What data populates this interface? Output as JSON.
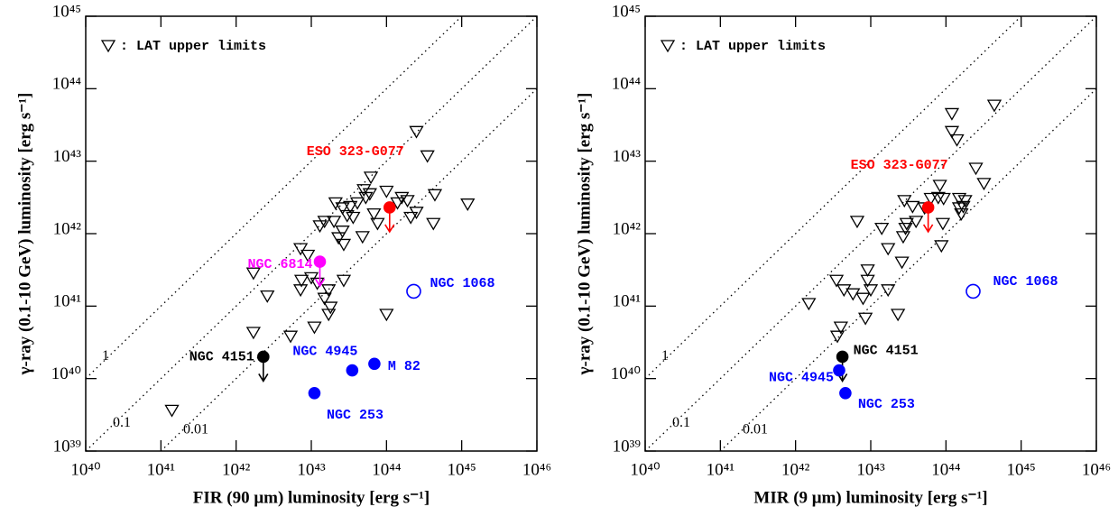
{
  "chart_data": [
    {
      "type": "scatter",
      "x_label": "FIR (90 μm) luminosity [erg s⁻¹]",
      "y_label": "γ-ray (0.1-10 GeV) luminosity [erg s⁻¹]",
      "xscale": "log",
      "yscale": "log",
      "xlim": [
        1e+40,
        1e+46
      ],
      "ylim": [
        1e+39,
        1e+45
      ],
      "xticks": [
        {
          "value": 1e+40,
          "label": "10⁴⁰"
        },
        {
          "value": 1e+41,
          "label": "10⁴¹"
        },
        {
          "value": 1e+42,
          "label": "10⁴²"
        },
        {
          "value": 1e+43,
          "label": "10⁴³"
        },
        {
          "value": 1e+44,
          "label": "10⁴⁴"
        },
        {
          "value": 1e+45,
          "label": "10⁴⁵"
        },
        {
          "value": 1e+46,
          "label": "10⁴⁶"
        }
      ],
      "yticks": [
        {
          "value": 1e+39,
          "label": "10³⁹"
        },
        {
          "value": 1e+40,
          "label": "10⁴⁰"
        },
        {
          "value": 1e+41,
          "label": "10⁴¹"
        },
        {
          "value": 1e+42,
          "label": "10⁴²"
        },
        {
          "value": 1e+43,
          "label": "10⁴³"
        },
        {
          "value": 1e+44,
          "label": "10⁴⁴"
        },
        {
          "value": 1e+45,
          "label": "10⁴⁵"
        }
      ],
      "ratio_lines": [
        1,
        0.1,
        0.01
      ],
      "legend": "upper left",
      "series": [
        {
          "name": ": LAT upper limits",
          "marker": "triangle-down",
          "color": "#000000",
          "x": [
            2.5e+44,
            3.5e+44,
            6.2e+43,
            5e+43,
            5.3e+43,
            3.3e+43,
            2.1e+43,
            4.1e+43,
            3.6e+43,
            6e+43,
            1e+44,
            1.6e+44,
            1.9e+44,
            1.4e+44,
            2.5e+44,
            2.1e+44,
            4.4e+44,
            1.2e+45,
            4.2e+44,
            6.8e+43,
            7.6e+43,
            2.6e+43,
            3e+43,
            2e+43,
            1.5e+43,
            1.3e+43,
            2.6e+43,
            2.3e+43,
            2.7e+43,
            4.8e+43,
            7.2e+42,
            9e+42,
            1.7e+42,
            2.6e+42,
            7.4e+42,
            7.2e+42,
            1e+43,
            1.2e+43,
            2.7e+43,
            1.7e+43,
            1.5e+43,
            1.8e+43,
            1.7e+43,
            1.1e+43,
            5.3e+42,
            1.7e+42,
            1e+44,
            1.4e+41
          ],
          "values": [
            2.6e+43,
            1.2e+43,
            6.1e+42,
            4.1e+42,
            3.2e+42,
            2.4e+42,
            2.7e+42,
            2.7e+42,
            1.7e+42,
            3.6e+42,
            3.9e+42,
            3.2e+42,
            2.9e+42,
            2.7e+42,
            2e+42,
            1.7e+42,
            3.5e+42,
            2.6e+42,
            1.4e+42,
            1.9e+42,
            1.4e+42,
            2.3e+42,
            1.8e+42,
            1.5e+42,
            1.5e+42,
            1.3e+42,
            1.1e+42,
            8.9e+41,
            7.2e+41,
            9.2e+41,
            6.3e+41,
            5.1e+41,
            2.9e+41,
            1.4e+41,
            2.3e+41,
            1.7e+41,
            2.5e+41,
            2.1e+41,
            2.3e+41,
            1.7e+41,
            1.3e+41,
            9.8e+40,
            7.8e+40,
            5.2e+40,
            3.9e+40,
            4.4e+40,
            7.8e+40,
            3.7e+39
          ]
        },
        {
          "name": "ESO 323-G077",
          "marker": "circle",
          "color": "#ff0000",
          "upper_limit": true,
          "x": [
            1.1e+44
          ],
          "values": [
            2.3e+42
          ]
        },
        {
          "name": "NGC 6814",
          "marker": "circle",
          "color": "#ff00ff",
          "upper_limit": true,
          "x": [
            1.3e+43
          ],
          "values": [
            4.1e+41
          ]
        },
        {
          "name": "NGC 1068",
          "marker": "open-circle",
          "color": "#0000ff",
          "x": [
            2.3e+44
          ],
          "values": [
            1.6e+41
          ]
        },
        {
          "name": "NGC 4945",
          "marker": "circle",
          "color": "#0000ff",
          "x": [
            3.5e+43
          ],
          "values": [
            1.3e+40
          ]
        },
        {
          "name": "M 82",
          "marker": "circle",
          "color": "#0000ff",
          "x": [
            6.9e+43
          ],
          "values": [
            1.6e+40
          ]
        },
        {
          "name": "NGC 253",
          "marker": "circle",
          "color": "#0000ff",
          "x": [
            1.1e+43
          ],
          "values": [
            6.3e+39
          ]
        },
        {
          "name": "NGC 4151",
          "marker": "circle",
          "color": "#000000",
          "upper_limit": true,
          "x": [
            2.3e+42
          ],
          "values": [
            2e+40
          ]
        }
      ]
    },
    {
      "type": "scatter",
      "x_label": "MIR (9 μm) luminosity [erg s⁻¹]",
      "y_label": "γ-ray (0.1-10 GeV) luminosity [erg s⁻¹]",
      "xscale": "log",
      "yscale": "log",
      "xlim": [
        1e+40,
        1e+46
      ],
      "ylim": [
        1e+39,
        1e+45
      ],
      "xticks": [
        {
          "value": 1e+40,
          "label": "10⁴⁰"
        },
        {
          "value": 1e+41,
          "label": "10⁴¹"
        },
        {
          "value": 1e+42,
          "label": "10⁴²"
        },
        {
          "value": 1e+43,
          "label": "10⁴³"
        },
        {
          "value": 1e+44,
          "label": "10⁴⁴"
        },
        {
          "value": 1e+45,
          "label": "10⁴⁵"
        },
        {
          "value": 1e+46,
          "label": "10⁴⁶"
        }
      ],
      "yticks": [
        {
          "value": 1e+39,
          "label": "10³⁹"
        },
        {
          "value": 1e+40,
          "label": "10⁴⁰"
        },
        {
          "value": 1e+41,
          "label": "10⁴¹"
        },
        {
          "value": 1e+42,
          "label": "10⁴²"
        },
        {
          "value": 1e+43,
          "label": "10⁴³"
        },
        {
          "value": 1e+44,
          "label": "10⁴⁴"
        },
        {
          "value": 1e+45,
          "label": "10⁴⁵"
        }
      ],
      "ratio_lines": [
        1,
        0.1,
        0.01
      ],
      "legend": "upper left",
      "series": [
        {
          "name": ": LAT upper limits",
          "marker": "triangle-down",
          "color": "#000000",
          "x": [
            4.4e+44,
            1.2e+44,
            1.2e+44,
            1.4e+44,
            2.5e+44,
            3.2e+44,
            8.3e+43,
            6.3e+43,
            7.9e+43,
            9.3e+43,
            1.5e+44,
            1.7e+44,
            1.5e+44,
            1.8e+44,
            1.6e+44,
            2.8e+43,
            3.6e+43,
            5.2e+43,
            4e+43,
            2.9e+43,
            2.7e+43,
            3e+43,
            6.6e+42,
            1.4e+43,
            1.7e+43,
            9.1e+43,
            8.7e+43,
            2.6e+43,
            9.1e+42,
            3.5e+42,
            4.4e+42,
            5.8e+42,
            9.1e+42,
            1e+43,
            1.7e+43,
            7.9e+42,
            8.5e+42,
            2.3e+43,
            1.5e+42,
            4e+42,
            3.6e+42
          ],
          "values": [
            6e+43,
            4.6e+43,
            2.6e+43,
            2e+43,
            8.1e+42,
            5e+42,
            4.7e+42,
            3.1e+42,
            3.2e+42,
            3.1e+42,
            3.1e+42,
            2.4e+42,
            2.3e+42,
            2.9e+42,
            1.9e+42,
            2.9e+42,
            2.4e+42,
            2.3e+42,
            1.5e+42,
            1.2e+42,
            9.2e+41,
            1.4e+42,
            1.5e+42,
            1.2e+42,
            6.3e+41,
            1.4e+42,
            6.9e+41,
            4.1e+41,
            3.2e+41,
            2.3e+41,
            1.7e+41,
            1.5e+41,
            2.3e+41,
            1.7e+41,
            1.7e+41,
            1.3e+41,
            6.9e+40,
            7.8e+40,
            1.1e+41,
            5.2e+40,
            3.9e+40
          ]
        },
        {
          "name": "ESO 323-G077",
          "marker": "circle",
          "color": "#ff0000",
          "upper_limit": true,
          "x": [
            5.8e+43
          ],
          "values": [
            2.3e+42
          ]
        },
        {
          "name": "NGC 1068",
          "marker": "open-circle",
          "color": "#0000ff",
          "x": [
            2.3e+44
          ],
          "values": [
            1.6e+41
          ]
        },
        {
          "name": "NGC 4151",
          "marker": "circle",
          "color": "#000000",
          "upper_limit": true,
          "x": [
            4.2e+42
          ],
          "values": [
            2e+40
          ]
        },
        {
          "name": "NGC 4945",
          "marker": "circle",
          "color": "#0000ff",
          "x": [
            3.8e+42
          ],
          "values": [
            1.3e+40
          ]
        },
        {
          "name": "NGC 253",
          "marker": "circle",
          "color": "#0000ff",
          "x": [
            4.6e+42
          ],
          "values": [
            6.3e+39
          ]
        }
      ]
    }
  ]
}
